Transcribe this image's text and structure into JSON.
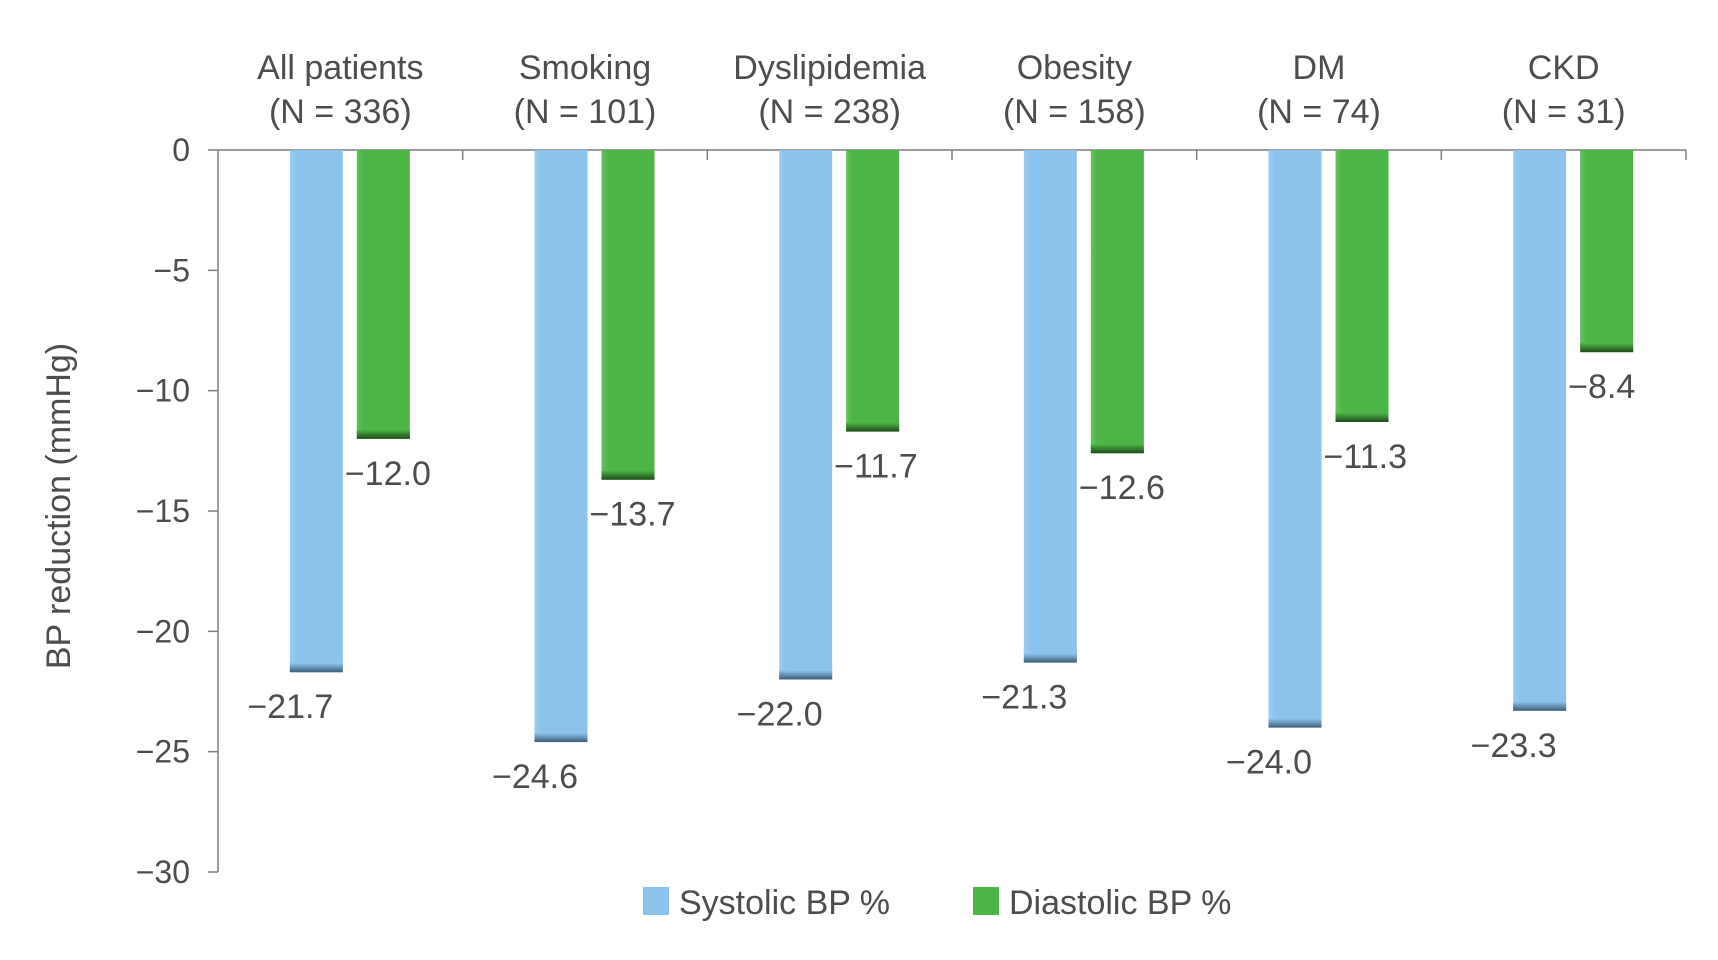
{
  "chart_data": {
    "type": "bar",
    "categories": [
      "All patients",
      "Smoking",
      "Dyslipidemia",
      "Obesity",
      "DM",
      "CKD"
    ],
    "category_counts": [
      "(N = 336)",
      "(N = 101)",
      "(N = 238)",
      "(N = 158)",
      "(N = 74)",
      "(N = 31)"
    ],
    "series": [
      {
        "name": "Systolic BP %",
        "color": "#8cc3ec",
        "edge_color": "#3d5e78",
        "values": [
          -21.7,
          -24.6,
          -22.0,
          -21.3,
          -24.0,
          -23.3
        ],
        "labels": [
          "−21.7",
          "−24.6",
          "−22.0",
          "−21.3",
          "−24.0",
          "−23.3"
        ]
      },
      {
        "name": "Diastolic BP %",
        "color": "#4db545",
        "edge_color": "#1e4a1a",
        "values": [
          -12.0,
          -13.7,
          -11.7,
          -12.6,
          -11.3,
          -8.4
        ],
        "labels": [
          "−12.0",
          "−13.7",
          "−11.7",
          "−12.6",
          "−11.3",
          "−8.4"
        ]
      }
    ],
    "ylabel": "BP reduction (mmHg)",
    "xlabel": "",
    "ylim": [
      -30,
      0
    ],
    "yticks": [
      0,
      -5,
      -10,
      -15,
      -20,
      -25,
      -30
    ],
    "ytick_labels": [
      "0",
      "−5",
      "−10",
      "−15",
      "−20",
      "−25",
      "−30"
    ],
    "category_label_position": "top",
    "legend_position": "bottom-center",
    "grid": false
  }
}
